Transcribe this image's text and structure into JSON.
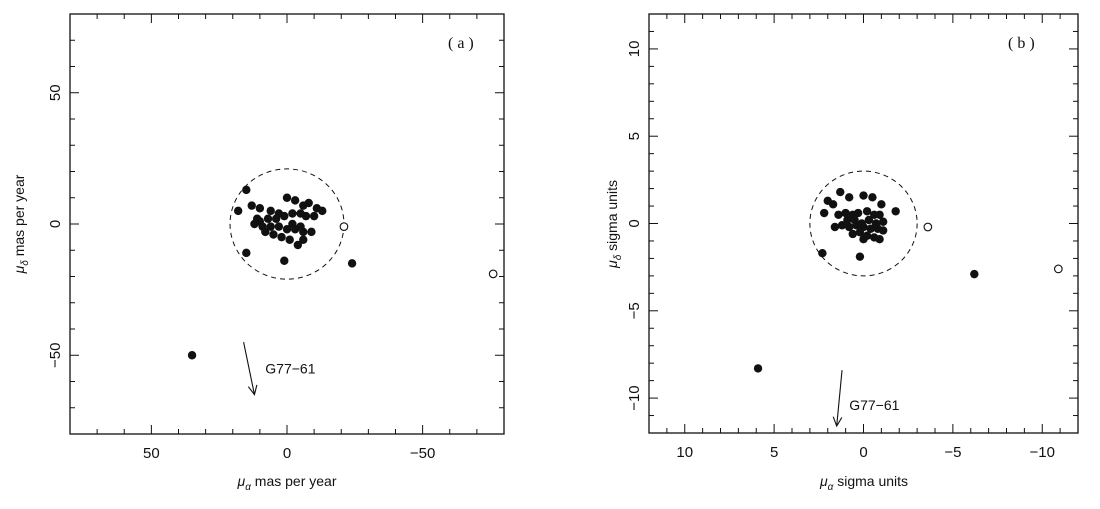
{
  "chart_data": [
    {
      "type": "scatter",
      "panel_label": "( a )",
      "xlabel_sym": "μ",
      "xlabel_sub": "α",
      "xlabel_rest": " mas per year",
      "ylabel_sym": "μ",
      "ylabel_sub": "δ",
      "ylabel_rest": " mas per year",
      "xlim": [
        80,
        -80
      ],
      "ylim": [
        -80,
        80
      ],
      "xticks": [
        50,
        0,
        -50
      ],
      "xtick_labels": [
        "50",
        "0",
        "−50"
      ],
      "yticks": [
        50,
        0,
        -50
      ],
      "ytick_labels": [
        "50",
        "0",
        "−50"
      ],
      "grid": false,
      "circle": {
        "cx": 0,
        "cy": 0,
        "r": 21,
        "style": "dashed"
      },
      "filled_points": [
        [
          15,
          13
        ],
        [
          13,
          7
        ],
        [
          10,
          6
        ],
        [
          6,
          5
        ],
        [
          3,
          4
        ],
        [
          0,
          10
        ],
        [
          -3,
          9
        ],
        [
          -6,
          7
        ],
        [
          -8,
          8
        ],
        [
          -11,
          6
        ],
        [
          -13,
          5
        ],
        [
          -10,
          3
        ],
        [
          -7,
          3
        ],
        [
          -5,
          4
        ],
        [
          -2,
          4
        ],
        [
          1,
          3
        ],
        [
          4,
          2
        ],
        [
          7,
          2
        ],
        [
          10,
          1
        ],
        [
          12,
          0
        ],
        [
          9,
          -1
        ],
        [
          6,
          -1
        ],
        [
          3,
          -1
        ],
        [
          0,
          -2
        ],
        [
          -3,
          -2
        ],
        [
          -6,
          -3
        ],
        [
          -9,
          -3
        ],
        [
          -6,
          -6
        ],
        [
          -4,
          -8
        ],
        [
          -1,
          -6
        ],
        [
          2,
          -5
        ],
        [
          5,
          -4
        ],
        [
          8,
          -3
        ],
        [
          15,
          -11
        ],
        [
          1,
          -14
        ],
        [
          -24,
          -15
        ],
        [
          -5,
          -1
        ],
        [
          -2,
          0
        ],
        [
          18,
          5
        ],
        [
          11,
          2
        ],
        [
          35,
          -50
        ]
      ],
      "open_points": [
        [
          -21,
          -1
        ],
        [
          -76,
          -19
        ]
      ],
      "arrow": {
        "x1": 16,
        "y1": -45,
        "x2": 12,
        "y2": -65
      },
      "annotation": {
        "text": "G77−61",
        "x": 8,
        "y": -55
      }
    },
    {
      "type": "scatter",
      "panel_label": "( b )",
      "xlabel_sym": "μ",
      "xlabel_sub": "α",
      "xlabel_rest": " sigma units",
      "ylabel_sym": "μ",
      "ylabel_sub": "δ",
      "ylabel_rest": " sigma units",
      "xlim": [
        12,
        -12
      ],
      "ylim": [
        -12,
        12
      ],
      "xticks": [
        10,
        5,
        0,
        -5,
        -10
      ],
      "xtick_labels": [
        "10",
        "5",
        "0",
        "−5",
        "−10"
      ],
      "yticks": [
        10,
        5,
        0,
        -5,
        -10
      ],
      "ytick_labels": [
        "10",
        "5",
        "0",
        "−5",
        "−10"
      ],
      "grid": false,
      "circle": {
        "cx": 0,
        "cy": 0,
        "r": 3,
        "style": "dashed"
      },
      "filled_points": [
        [
          2.2,
          0.6
        ],
        [
          2.0,
          1.3
        ],
        [
          1.7,
          1.1
        ],
        [
          1.3,
          1.8
        ],
        [
          0.8,
          1.5
        ],
        [
          0,
          1.6
        ],
        [
          -0.5,
          1.5
        ],
        [
          -1.0,
          1.1
        ],
        [
          -1.8,
          0.7
        ],
        [
          1.4,
          0.5
        ],
        [
          1.0,
          0.6
        ],
        [
          0.6,
          0.5
        ],
        [
          0.3,
          0.6
        ],
        [
          -0.2,
          0.7
        ],
        [
          -0.6,
          0.5
        ],
        [
          -0.9,
          0.5
        ],
        [
          1.6,
          -0.2
        ],
        [
          1.2,
          -0.1
        ],
        [
          0.8,
          -0.2
        ],
        [
          0.4,
          -0.1
        ],
        [
          0,
          -0.2
        ],
        [
          -0.4,
          -0.3
        ],
        [
          -0.8,
          -0.3
        ],
        [
          -1.1,
          -0.4
        ],
        [
          0.6,
          -0.6
        ],
        [
          0.2,
          -0.5
        ],
        [
          -0.2,
          -0.7
        ],
        [
          -0.6,
          -0.8
        ],
        [
          -0.9,
          -0.9
        ],
        [
          0.2,
          -1.9
        ],
        [
          2.3,
          -1.7
        ],
        [
          0.9,
          0.2
        ],
        [
          0.5,
          0.2
        ],
        [
          0.1,
          0.0
        ],
        [
          -0.3,
          0.2
        ],
        [
          -0.7,
          0.0
        ],
        [
          -1.1,
          0.1
        ],
        [
          0,
          -0.9
        ],
        [
          -6.2,
          -2.9
        ],
        [
          5.9,
          -8.3
        ]
      ],
      "open_points": [
        [
          -3.6,
          -0.2
        ],
        [
          -10.9,
          -2.6
        ]
      ],
      "arrow": {
        "x1": 1.2,
        "y1": -8.4,
        "x2": 1.5,
        "y2": -11.6
      },
      "annotation": {
        "text": "G77−61",
        "x": 0.8,
        "y": -10.4
      }
    }
  ]
}
